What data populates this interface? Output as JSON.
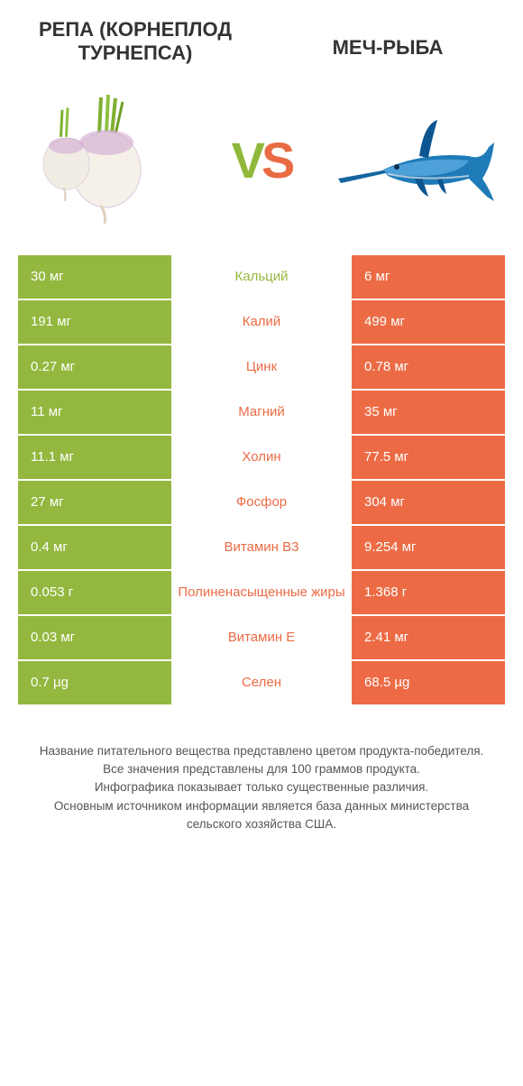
{
  "colors": {
    "green": "#94b83f",
    "orange": "#ec6b45",
    "text": "#333333",
    "footer_text": "#555555",
    "white": "#ffffff"
  },
  "typography": {
    "title_fontsize": 22,
    "vs_fontsize": 56,
    "cell_fontsize": 15,
    "footer_fontsize": 13.5
  },
  "header": {
    "left_title": "РЕПА (КОРНЕПЛОД ТУРНЕПСА)",
    "right_title": "МЕЧ-РЫБА",
    "vs_v": "V",
    "vs_s": "S"
  },
  "icons": {
    "left": "turnip",
    "right": "swordfish"
  },
  "rows": [
    {
      "left": "30 мг",
      "label": "Кальций",
      "right": "6 мг",
      "winner": "left"
    },
    {
      "left": "191 мг",
      "label": "Калий",
      "right": "499 мг",
      "winner": "right"
    },
    {
      "left": "0.27 мг",
      "label": "Цинк",
      "right": "0.78 мг",
      "winner": "right"
    },
    {
      "left": "11 мг",
      "label": "Магний",
      "right": "35 мг",
      "winner": "right"
    },
    {
      "left": "11.1 мг",
      "label": "Холин",
      "right": "77.5 мг",
      "winner": "right"
    },
    {
      "left": "27 мг",
      "label": "Фосфор",
      "right": "304 мг",
      "winner": "right"
    },
    {
      "left": "0.4 мг",
      "label": "Витамин B3",
      "right": "9.254 мг",
      "winner": "right"
    },
    {
      "left": "0.053 г",
      "label": "Полиненасыщенные жиры",
      "right": "1.368 г",
      "winner": "right"
    },
    {
      "left": "0.03 мг",
      "label": "Витамин E",
      "right": "2.41 мг",
      "winner": "right"
    },
    {
      "left": "0.7 µg",
      "label": "Селен",
      "right": "68.5 µg",
      "winner": "right"
    }
  ],
  "footer": {
    "line1": "Название питательного вещества представлено цветом продукта-победителя.",
    "line2": "Все значения представлены для 100 граммов продукта.",
    "line3": "Инфографика показывает только существенные различия.",
    "line4": "Основным источником информации является база данных министерства сельского хозяйства США."
  }
}
